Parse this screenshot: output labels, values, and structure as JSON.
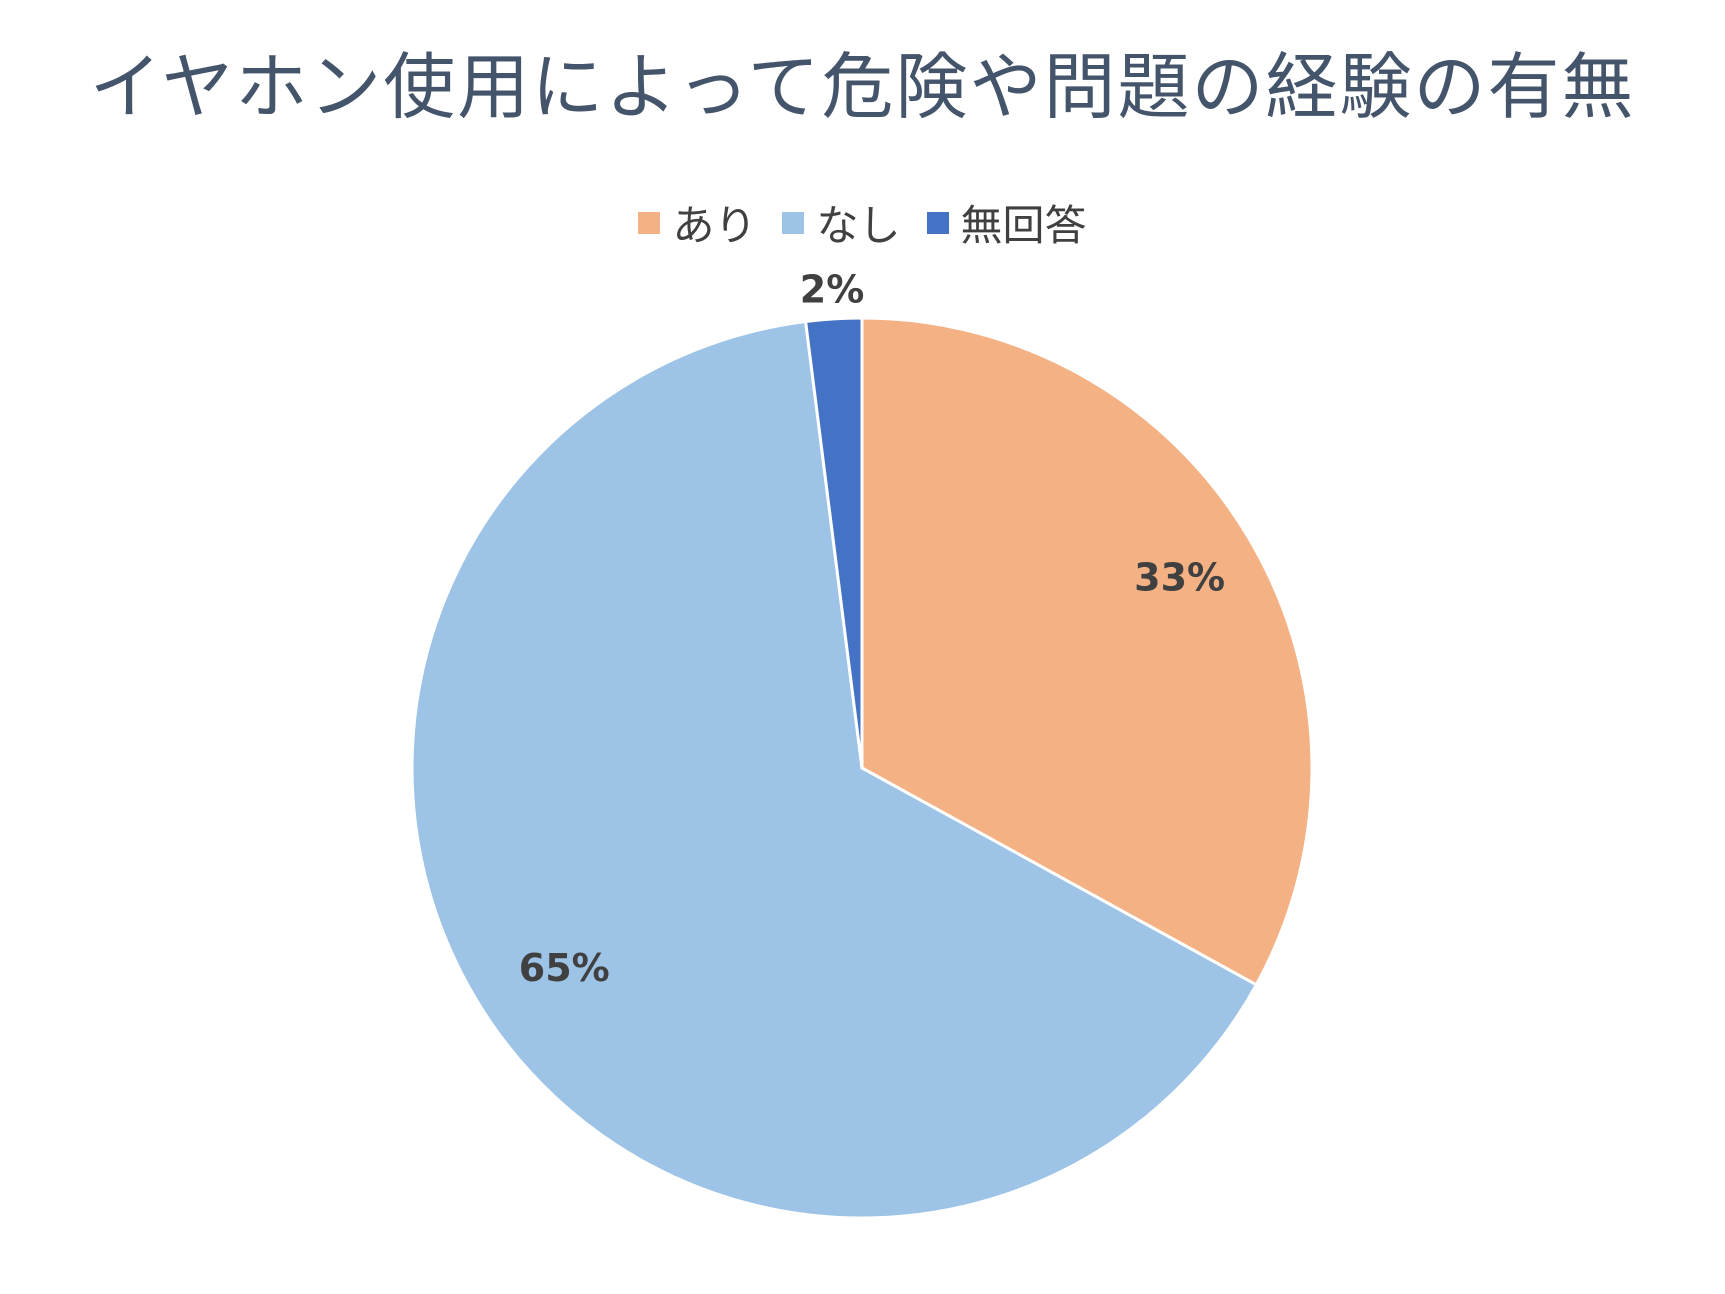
{
  "chart_data": {
    "type": "pie",
    "title": "イヤホン使用によって危険や問題の経験の有無",
    "legend_position": "top",
    "categories": [
      "あり",
      "なし",
      "無回答"
    ],
    "values": [
      33,
      65,
      2
    ],
    "data_labels": [
      "33%",
      "65%",
      "2%"
    ],
    "colors": [
      "#F4B183",
      "#9DC3E6",
      "#4472C4"
    ]
  }
}
